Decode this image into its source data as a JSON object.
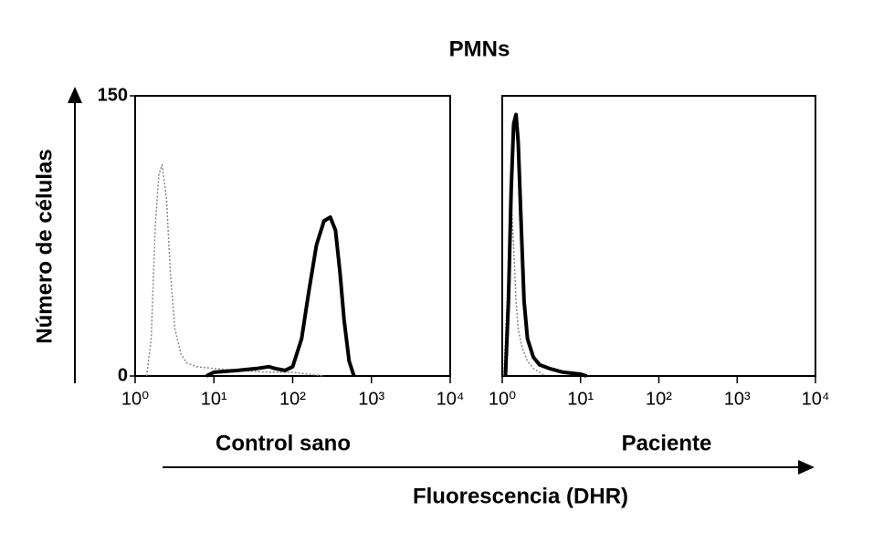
{
  "figure": {
    "title": "PMNs",
    "ylabel": "Número de células",
    "xlabel": "Fluorescencia (DHR)"
  },
  "chart_data": [
    {
      "type": "line",
      "title": "Control sano",
      "xscale": "log",
      "xlim": [
        1,
        10000
      ],
      "ylim": [
        0,
        150
      ],
      "xticks": [
        {
          "value": 1,
          "label": "10⁰"
        },
        {
          "value": 10,
          "label": "10¹"
        },
        {
          "value": 100,
          "label": "10²"
        },
        {
          "value": 1000,
          "label": "10³"
        },
        {
          "value": 10000,
          "label": "10⁴"
        }
      ],
      "yticks": [
        0,
        150
      ],
      "series": [
        {
          "color": "#888888",
          "style": "dotted",
          "x": [
            1.4,
            1.6,
            1.8,
            2.0,
            2.2,
            2.5,
            2.8,
            3.2,
            3.8,
            4.5,
            6,
            10,
            20,
            50,
            100,
            160,
            250
          ],
          "values": [
            0,
            20,
            80,
            108,
            113,
            95,
            55,
            25,
            12,
            7,
            5,
            4,
            3,
            2,
            2,
            1,
            0
          ]
        },
        {
          "color": "#000000",
          "style": "solid",
          "x": [
            8,
            10,
            20,
            35,
            50,
            60,
            80,
            100,
            130,
            160,
            200,
            250,
            300,
            350,
            400,
            450,
            520,
            600
          ],
          "values": [
            0,
            2,
            3,
            4,
            5,
            4,
            3,
            5,
            20,
            45,
            70,
            83,
            85,
            78,
            55,
            30,
            8,
            0
          ]
        }
      ]
    },
    {
      "type": "line",
      "title": "Paciente",
      "xscale": "log",
      "xlim": [
        1,
        10000
      ],
      "ylim": [
        0,
        150
      ],
      "xticks": [
        {
          "value": 1,
          "label": "10⁰"
        },
        {
          "value": 10,
          "label": "10¹"
        },
        {
          "value": 100,
          "label": "10²"
        },
        {
          "value": 1000,
          "label": "10³"
        },
        {
          "value": 10000,
          "label": "10⁴"
        }
      ],
      "yticks": [],
      "series": [
        {
          "color": "#888888",
          "style": "dotted",
          "x": [
            1.05,
            1.15,
            1.3,
            1.4,
            1.5,
            1.6,
            1.8,
            2.1,
            2.5,
            3,
            3.5
          ],
          "values": [
            0,
            40,
            94,
            70,
            40,
            25,
            15,
            8,
            4,
            2,
            0
          ]
        },
        {
          "color": "#000000",
          "style": "solid",
          "x": [
            1.1,
            1.2,
            1.3,
            1.4,
            1.5,
            1.6,
            1.75,
            1.9,
            2.1,
            2.5,
            3,
            4,
            6,
            10,
            12
          ],
          "values": [
            0,
            40,
            100,
            135,
            140,
            125,
            80,
            40,
            20,
            10,
            6,
            4,
            2,
            1,
            0
          ]
        }
      ]
    }
  ]
}
